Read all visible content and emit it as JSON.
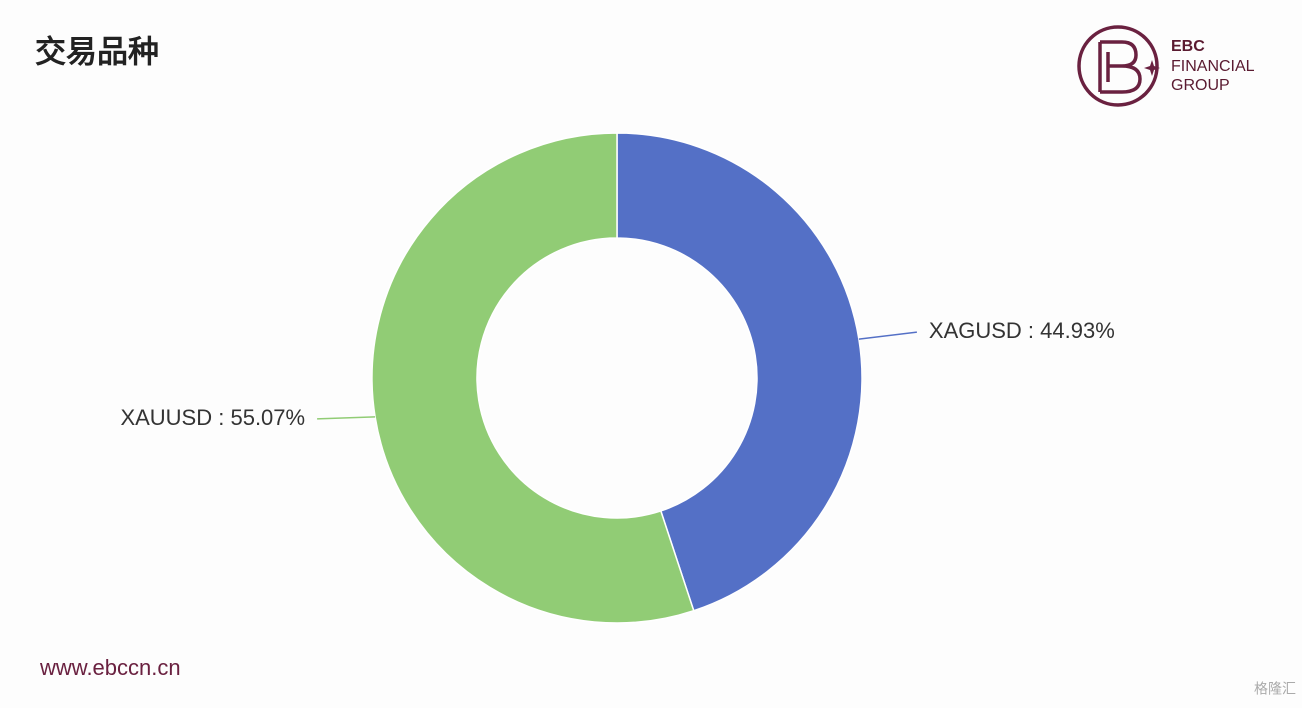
{
  "header": {
    "title": "交易品种"
  },
  "brand": {
    "lines": [
      "EBC",
      "FINANCIAL",
      "GROUP"
    ]
  },
  "footer": {
    "url": "www.ebccn.cn",
    "watermark": "格隆汇"
  },
  "chart_data": {
    "type": "donut",
    "categories": [
      "XAGUSD",
      "XAUUSD"
    ],
    "values": [
      44.93,
      55.07
    ],
    "value_labels": [
      "44.93%",
      "55.07%"
    ],
    "label_separator": " : ",
    "colors": [
      "#5470c6",
      "#91cc75"
    ]
  }
}
